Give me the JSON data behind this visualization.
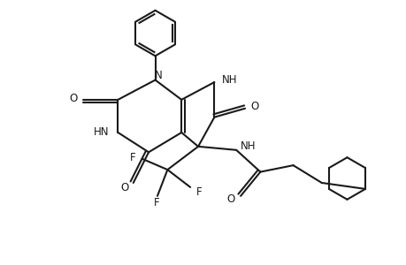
{
  "background": "#ffffff",
  "line_color": "#1a1a1a",
  "line_width": 1.5,
  "font_size": 8.5,
  "fig_width": 4.6,
  "fig_height": 3.0,
  "dpi": 100,
  "xlim": [
    0,
    9.2
  ],
  "ylim": [
    0,
    6.0
  ]
}
